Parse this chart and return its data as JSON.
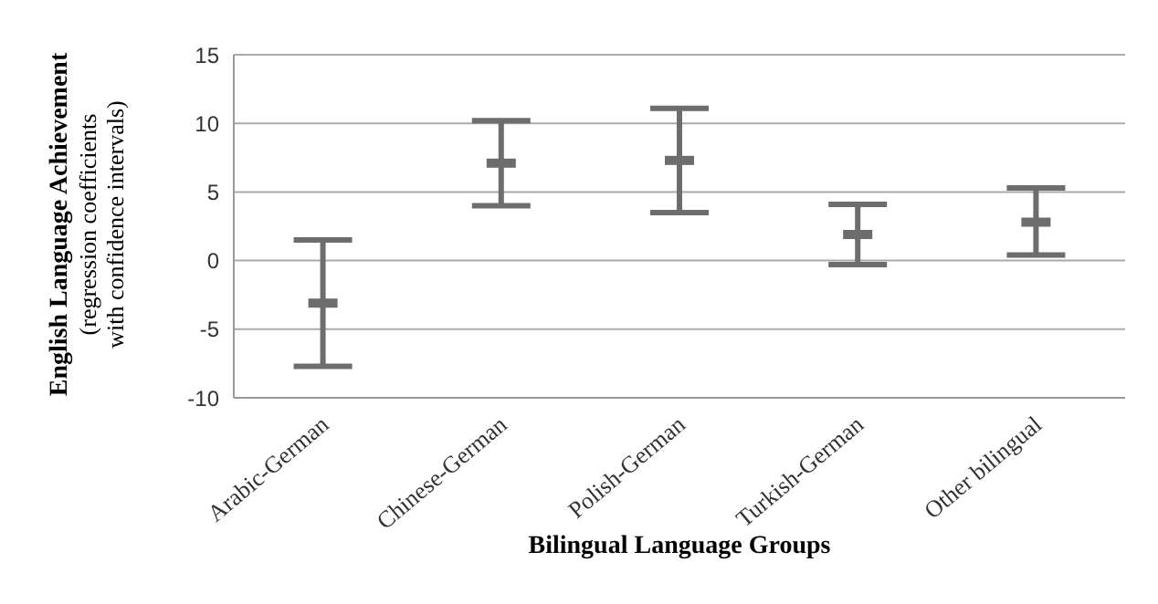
{
  "chart_data": {
    "type": "scatter",
    "xlabel": "Bilingual Language Groups",
    "ylabel": "English Language Achievement\n(regression coefficients\nwith confidence intervals)",
    "categories": [
      "Arabic-German",
      "Chinese-German",
      "Polish-German",
      "Turkish-German",
      "Other bilingual"
    ],
    "series": [
      {
        "color": "#6d6d6d",
        "values": [
          -3.1,
          7.1,
          7.3,
          1.9,
          2.8
        ],
        "errors": [
          [
            -7.7,
            1.5
          ],
          [
            4.0,
            10.2
          ],
          [
            3.5,
            11.1
          ],
          [
            -0.3,
            4.1
          ],
          [
            0.4,
            5.3
          ]
        ]
      }
    ],
    "ylim": [
      -10,
      15
    ],
    "yticks": [
      -10,
      -5,
      0,
      5,
      10,
      15
    ],
    "grid": "y"
  }
}
